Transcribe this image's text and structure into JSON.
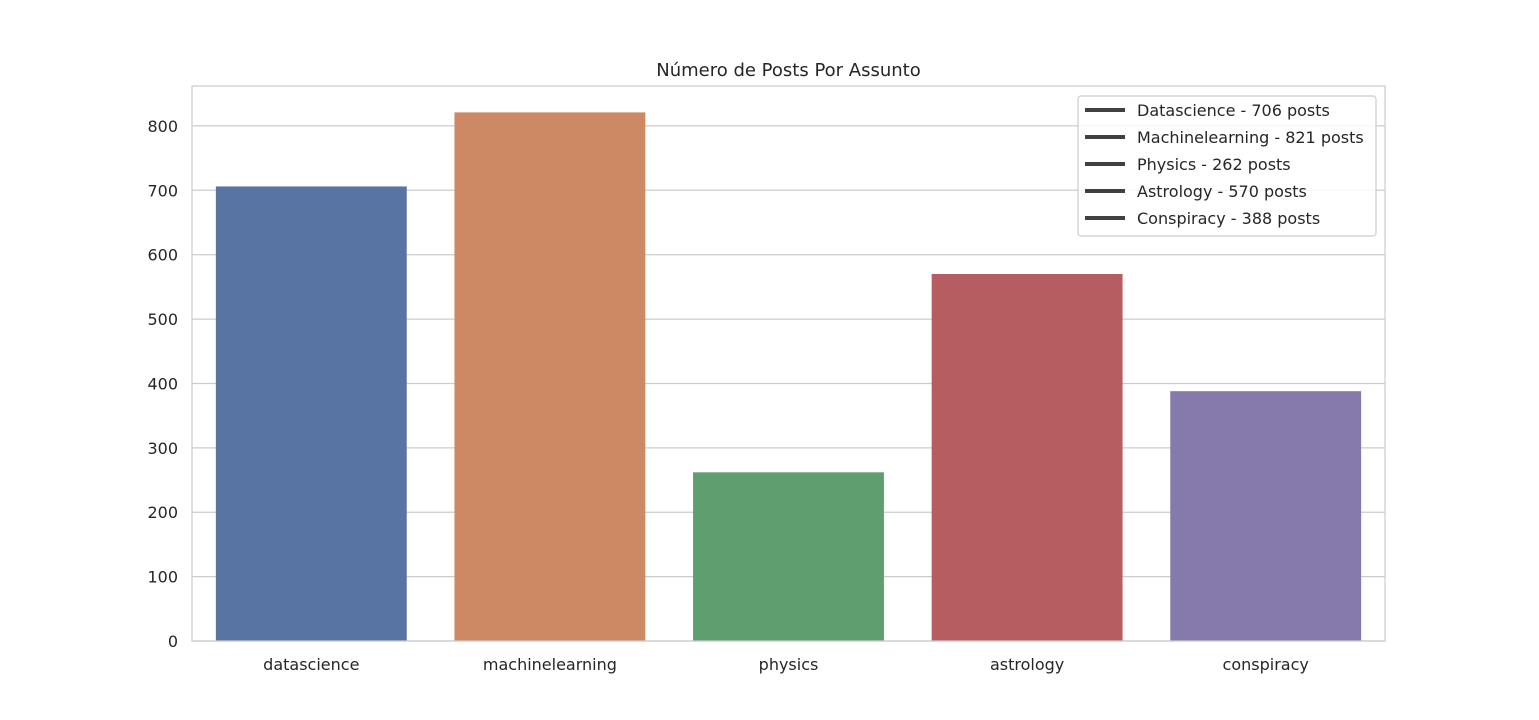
{
  "chart_data": {
    "type": "bar",
    "title": "Número de Posts Por Assunto",
    "xlabel": "",
    "ylabel": "",
    "categories": [
      "datascience",
      "machinelearning",
      "physics",
      "astrology",
      "conspiracy"
    ],
    "values": [
      706,
      821,
      262,
      570,
      388
    ],
    "colors": [
      "#5874a3",
      "#cc8963",
      "#5f9e6e",
      "#b55d60",
      "#857aab"
    ],
    "ylim": [
      0,
      862
    ],
    "yticks": [
      0,
      100,
      200,
      300,
      400,
      500,
      600,
      700,
      800
    ],
    "grid": true,
    "legend": {
      "placement": "upper right",
      "line_color": "#404040",
      "entries": [
        "Datascience - 706 posts",
        "Machinelearning - 821 posts",
        "Physics - 262 posts",
        "Astrology - 570 posts",
        "Conspiracy - 388 posts"
      ]
    }
  }
}
